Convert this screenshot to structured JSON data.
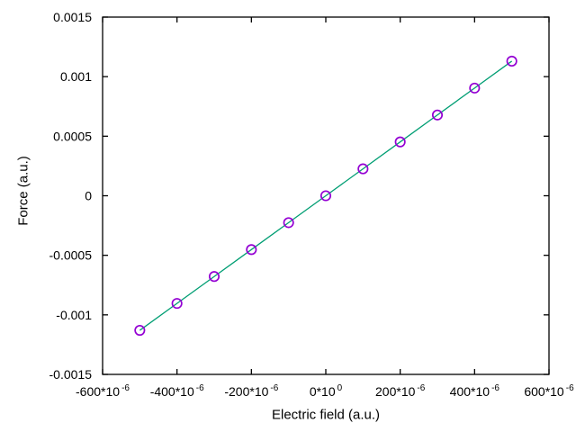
{
  "figure": {
    "background": "#ffffff",
    "axis_color": "#000000",
    "tick_label_color": "#000000"
  },
  "chart_data": {
    "type": "line",
    "title": "",
    "xlabel": "Electric field (a.u.)",
    "ylabel": "Force (a.u.)",
    "xlim": [
      -0.0006,
      0.0006
    ],
    "ylim": [
      -0.0015,
      0.0015
    ],
    "grid": false,
    "legend_visible": false,
    "xticks": [
      {
        "value": -0.0006,
        "label": "-600*10^-6"
      },
      {
        "value": -0.0004,
        "label": "-400*10^-6"
      },
      {
        "value": -0.0002,
        "label": "-200*10^-6"
      },
      {
        "value": 0.0,
        "label": "0*10^0"
      },
      {
        "value": 0.0002,
        "label": "200*10^-6"
      },
      {
        "value": 0.0004,
        "label": "400*10^-6"
      },
      {
        "value": 0.0006,
        "label": "600*10^-6"
      }
    ],
    "yticks": [
      {
        "value": -0.0015,
        "label": "-0.0015"
      },
      {
        "value": -0.001,
        "label": "-0.001"
      },
      {
        "value": -0.0005,
        "label": "-0.0005"
      },
      {
        "value": 0.0,
        "label": "0"
      },
      {
        "value": 0.0005,
        "label": "0.0005"
      },
      {
        "value": 0.001,
        "label": "0.001"
      },
      {
        "value": 0.0015,
        "label": "0.0015"
      }
    ],
    "series": [
      {
        "name": "force_vs_field",
        "style": "line-with-markers",
        "line_color": "#009e73",
        "marker": "open-circle",
        "marker_color": "#9400d3",
        "x": [
          -0.0005,
          -0.0004,
          -0.0003,
          -0.0002,
          -0.0001,
          0.0,
          0.0001,
          0.0002,
          0.0003,
          0.0004,
          0.0005
        ],
        "y": [
          -0.00113,
          -0.000904,
          -0.000678,
          -0.000452,
          -0.000226,
          0.0,
          0.000226,
          0.000452,
          0.000678,
          0.000904,
          0.00113
        ]
      }
    ]
  }
}
